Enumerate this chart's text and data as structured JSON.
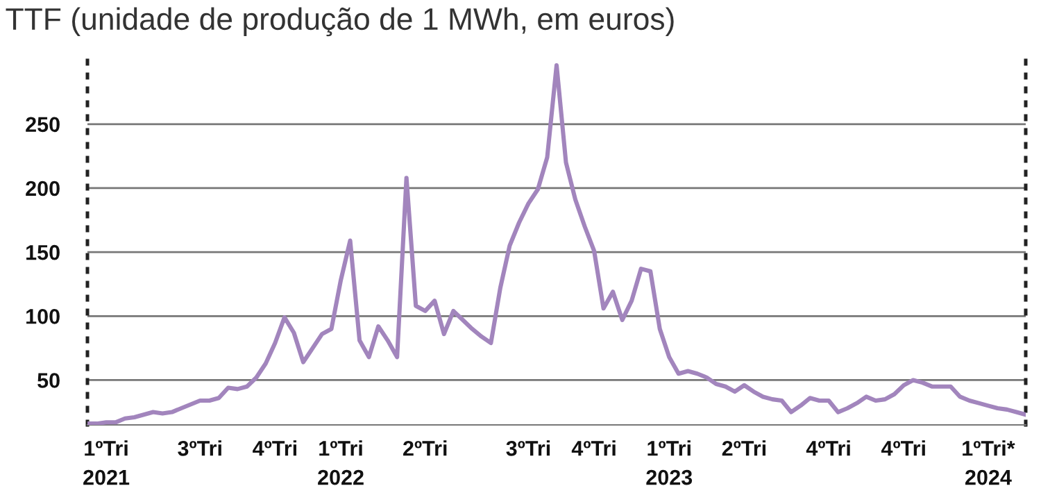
{
  "chart_data": {
    "type": "line",
    "title": "TTF (unidade de produção de 1 MWh, em euros)",
    "categories": [
      null,
      null,
      "1ºTri\n2021",
      null,
      null,
      null,
      null,
      null,
      null,
      null,
      null,
      null,
      "3ºTri",
      null,
      null,
      null,
      null,
      null,
      null,
      null,
      "4ºTri",
      null,
      null,
      null,
      null,
      null,
      null,
      "1ºTri\n2022",
      null,
      null,
      null,
      null,
      null,
      null,
      null,
      null,
      "2ºTri",
      null,
      null,
      null,
      null,
      null,
      null,
      null,
      null,
      null,
      null,
      "3ºTri",
      null,
      null,
      null,
      null,
      null,
      null,
      "4ºTri",
      null,
      null,
      null,
      null,
      null,
      null,
      null,
      "1ºTri\n2023",
      null,
      null,
      null,
      null,
      null,
      null,
      null,
      "2ºTri",
      null,
      null,
      null,
      null,
      null,
      null,
      null,
      null,
      "4ºTri",
      null,
      null,
      null,
      null,
      null,
      null,
      null,
      "4ºTri",
      null,
      null,
      null,
      null,
      null,
      null,
      null,
      null,
      "1ºTri*\n2024",
      null,
      null,
      null,
      null
    ],
    "ylim": [
      15,
      300
    ],
    "yticks": [
      50,
      100,
      150,
      200,
      250
    ],
    "grid": "y",
    "legend": false,
    "marker": "none",
    "line_style": "solid",
    "series": [
      {
        "color": "#a285bd",
        "values": [
          16,
          16,
          17,
          17,
          20,
          21,
          23,
          25,
          24,
          25,
          28,
          31,
          34,
          34,
          36,
          44,
          43,
          45,
          52,
          63,
          79,
          99,
          87,
          64,
          75,
          86,
          90,
          128,
          159,
          81,
          68,
          92,
          81,
          68,
          208,
          108,
          104,
          112,
          86,
          104,
          97,
          90,
          84,
          79,
          122,
          155,
          173,
          188,
          199,
          224,
          296,
          220,
          191,
          170,
          151,
          106,
          119,
          97,
          112,
          137,
          135,
          90,
          68,
          55,
          57,
          55,
          52,
          47,
          45,
          41,
          46,
          41,
          37,
          35,
          34,
          25,
          30,
          36,
          34,
          34,
          25,
          28,
          32,
          37,
          34,
          35,
          39,
          46,
          50,
          48,
          45,
          45,
          45,
          37,
          34,
          32,
          30,
          28,
          27,
          25,
          23
        ]
      }
    ]
  }
}
